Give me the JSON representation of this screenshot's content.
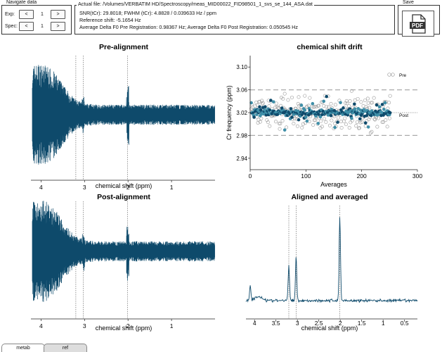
{
  "nav": {
    "title": "Navigate data",
    "exp_label": "Exp:",
    "exp_value": "1",
    "spec_label": "Spec:",
    "spec_value": "1",
    "prev_label": "<",
    "next_label": ">"
  },
  "info": {
    "file_line": "Actual file: /Volumes/VERBATIM HD/Spectroscopy/meas_MID00022_FID98501_1_svs_se_144_ASA.dat",
    "snr_line": "SNR(tCr): 29.8018; FWHM (tCr): 4.8828 / 0.039633 Hz / ppm",
    "ref_line": "Reference shift: -5.1654 Hz",
    "delta_line": "Average Delta F0 Pre Registration: 0.98367 Hz; Average Delta F0 Post Registration: 0.050545 Hz"
  },
  "save": {
    "title": "Save",
    "pdf_label": "PDF"
  },
  "plots": {
    "pre": {
      "title": "Pre-alignment",
      "xlabel": "chemical shift (ppm)",
      "ticks": [
        "4",
        "3",
        "2",
        "1"
      ]
    },
    "post": {
      "title": "Post-alignment",
      "xlabel": "chemical shift (ppm)",
      "ticks": [
        "4",
        "3",
        "2",
        "1"
      ]
    },
    "drift": {
      "title": "chemical shift drift",
      "xlabel": "Averages",
      "ylabel": "Cr frequency (ppm)",
      "xticks": [
        "0",
        "100",
        "200",
        "300"
      ],
      "yticks": [
        "3.10",
        "3.06",
        "3.02",
        "2.98",
        "2.94"
      ],
      "legend_pre": "Pre",
      "legend_post": "Post"
    },
    "avg": {
      "title": "Aligned and averaged",
      "xlabel": "chemical shift (ppm)",
      "ticks": [
        "4",
        "3.5",
        "3",
        "2.5",
        "2",
        "1.5",
        "1",
        "0.5"
      ]
    }
  },
  "chart_data": [
    {
      "type": "line",
      "title": "Pre-alignment",
      "xlabel": "chemical shift (ppm)",
      "xlim": [
        4.2,
        0.0
      ],
      "x_ticks": [
        4,
        3,
        2,
        1
      ],
      "reference_lines_ppm": [
        3.2,
        3.03,
        2.01
      ],
      "series": [
        {
          "values_description_free": true,
          "peaks_ppm": [
            3.02,
            2.01
          ]
        }
      ],
      "color": "#0e4a6b",
      "grid": false
    },
    {
      "type": "scatter",
      "title": "chemical shift drift",
      "xlabel": "Averages",
      "ylabel": "Cr frequency (ppm)",
      "xlim": [
        0,
        300
      ],
      "ylim": [
        2.92,
        3.12
      ],
      "reference_lines_y": [
        3.06,
        3.02,
        2.98
      ],
      "legend": "right",
      "series": [
        {
          "name": "Pre",
          "marker": "open"
        },
        {
          "name": "Post",
          "marker": "filled"
        }
      ]
    },
    {
      "type": "line",
      "title": "Post-alignment",
      "xlabel": "chemical shift (ppm)",
      "xlim": [
        4.2,
        0.0
      ],
      "x_ticks": [
        4,
        3,
        2,
        1
      ],
      "reference_lines_ppm": [
        3.2,
        3.03,
        2.01
      ],
      "color": "#0e4a6b",
      "grid": false
    },
    {
      "type": "line",
      "title": "Aligned and averaged",
      "xlabel": "chemical shift (ppm)",
      "xlim": [
        4.2,
        0.2
      ],
      "x_ticks": [
        4,
        3.5,
        3,
        2.5,
        2,
        1.5,
        1,
        0.5
      ],
      "reference_lines_ppm": [
        3.2,
        3.03,
        2.01
      ],
      "peaks": [
        {
          "ppm": 4.1,
          "height": 0.18
        },
        {
          "ppm": 3.2,
          "height": 0.42
        },
        {
          "ppm": 3.03,
          "height": 0.52
        },
        {
          "ppm": 2.01,
          "height": 1.0
        }
      ]
    }
  ],
  "tabs": [
    {
      "label": "metab"
    },
    {
      "label": "ref"
    }
  ]
}
